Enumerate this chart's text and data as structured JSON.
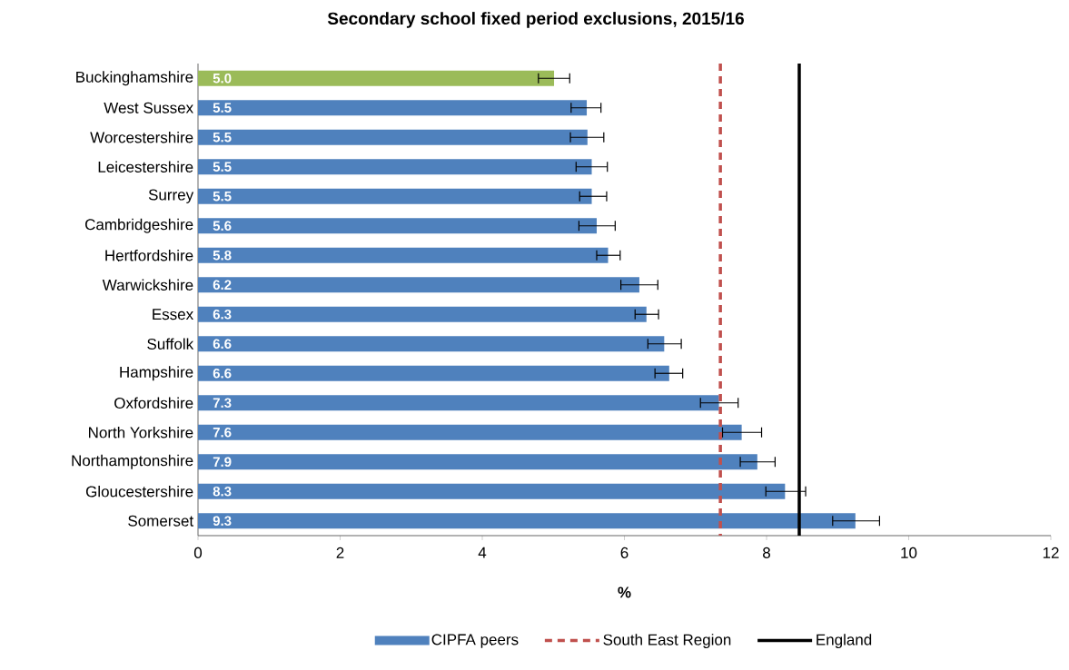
{
  "chart_data": {
    "type": "bar",
    "orientation": "horizontal",
    "title": "Secondary school fixed period exclusions, 2015/16",
    "xlabel": "%",
    "categories": [
      "Buckinghamshire",
      "West Sussex",
      "Worcestershire",
      "Leicestershire",
      "Surrey",
      "Cambridgeshire",
      "Hertfordshire",
      "Warwickshire",
      "Essex",
      "Suffolk",
      "Hampshire",
      "Oxfordshire",
      "North Yorkshire",
      "Northamptonshire",
      "Gloucestershire",
      "Somerset"
    ],
    "series": [
      {
        "name": "CIPFA peers",
        "color": "#4f81bd",
        "colors": [
          "#9bbb59",
          "#4f81bd",
          "#4f81bd",
          "#4f81bd",
          "#4f81bd",
          "#4f81bd",
          "#4f81bd",
          "#4f81bd",
          "#4f81bd",
          "#4f81bd",
          "#4f81bd",
          "#4f81bd",
          "#4f81bd",
          "#4f81bd",
          "#4f81bd",
          "#4f81bd"
        ],
        "values": [
          5.01,
          5.47,
          5.48,
          5.54,
          5.54,
          5.61,
          5.77,
          6.21,
          6.31,
          6.56,
          6.63,
          7.33,
          7.65,
          7.87,
          8.26,
          9.25
        ],
        "value_labels": [
          "5.0",
          "5.5",
          "5.5",
          "5.5",
          "5.5",
          "5.6",
          "5.8",
          "6.2",
          "6.3",
          "6.6",
          "6.6",
          "7.3",
          "7.6",
          "7.9",
          "8.3",
          "9.3"
        ],
        "errors": [
          [
            4.79,
            5.23
          ],
          [
            5.25,
            5.67
          ],
          [
            5.24,
            5.71
          ],
          [
            5.32,
            5.76
          ],
          [
            5.37,
            5.75
          ],
          [
            5.36,
            5.87
          ],
          [
            5.61,
            5.94
          ],
          [
            5.95,
            6.47
          ],
          [
            6.15,
            6.48
          ],
          [
            6.33,
            6.8
          ],
          [
            6.43,
            6.82
          ],
          [
            7.07,
            7.6
          ],
          [
            7.38,
            7.93
          ],
          [
            7.63,
            8.12
          ],
          [
            7.99,
            8.55
          ],
          [
            8.93,
            9.59
          ]
        ]
      }
    ],
    "ref_lines": [
      {
        "axis": "x",
        "value": 7.35,
        "label": "South East Region",
        "color": "#c0504d",
        "line_style": "dashed"
      },
      {
        "axis": "x",
        "value": 8.46,
        "label": "England",
        "color": "#000000",
        "line_style": "solid"
      }
    ],
    "xlim": [
      0,
      12
    ],
    "xticks": [
      0,
      2,
      4,
      6,
      8,
      10,
      12
    ],
    "grid": false,
    "legend": "bottom"
  }
}
